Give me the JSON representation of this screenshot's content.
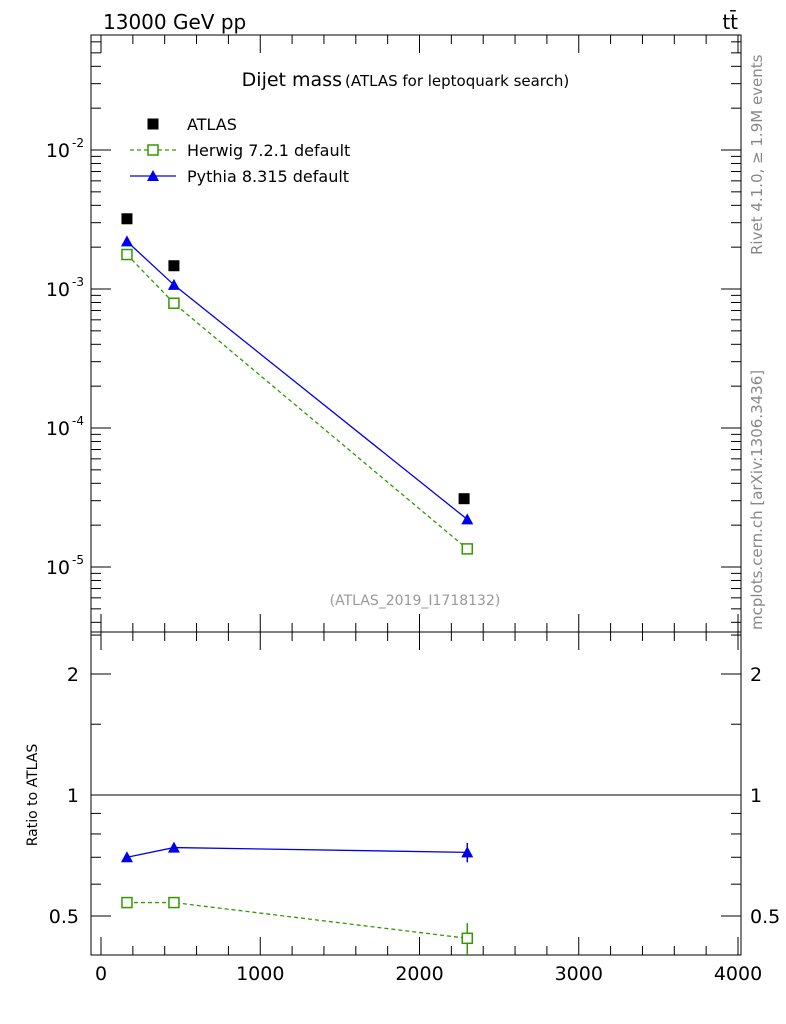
{
  "header": {
    "left": "13000 GeV pp",
    "right": "tt̄"
  },
  "side_text": {
    "top": "Rivet 4.1.0, ≥ 1.9M events",
    "bottom": "mcplots.cern.ch [arXiv:1306.3436]"
  },
  "chart_data": [
    {
      "type": "scatter",
      "title": "Dijet mass",
      "subtitle": "(ATLAS for leptoquark search)",
      "watermark": "(ATLAS_2019_I1718132)",
      "yscale": "log",
      "ylim": [
        0.068,
        3.4e-06
      ],
      "xlim": [
        -60,
        4020
      ],
      "ytick_labels": [
        {
          "exp": "-2",
          "value": 0.01
        },
        {
          "exp": "-3",
          "value": 0.001
        },
        {
          "exp": "-4",
          "value": 0.0001
        },
        {
          "exp": "-5",
          "value": 1e-05
        }
      ],
      "legend_position": "top-left",
      "series": [
        {
          "name": "ATLAS",
          "color": "#000000",
          "marker": "filled-square",
          "line": "none",
          "x": [
            163,
            458,
            2280
          ],
          "y": [
            0.0032,
            0.00147,
            3.1e-05
          ]
        },
        {
          "name": "Herwig 7.2.1 default",
          "color": "#339900",
          "marker": "open-square",
          "line": "dashed",
          "x": [
            163,
            458,
            2300
          ],
          "y": [
            0.00177,
            0.00079,
            1.35e-05
          ]
        },
        {
          "name": "Pythia 8.315 default",
          "color": "#0000ee",
          "marker": "filled-triangle",
          "line": "solid",
          "x": [
            163,
            458,
            2300
          ],
          "y": [
            0.0022,
            0.00107,
            2.2e-05
          ]
        }
      ]
    },
    {
      "type": "line",
      "ylabel": "Ratio to ATLAS",
      "yscale": "log",
      "ylim": [
        0.4,
        2.5
      ],
      "ytick_labels": [
        "2",
        "1",
        "0.5"
      ],
      "xtick_labels": [
        "0",
        "1000",
        "2000",
        "3000",
        "4000"
      ],
      "series": [
        {
          "name": "Pythia 8.315 default",
          "color": "#0000ee",
          "x": [
            163,
            458,
            2300
          ],
          "y": [
            0.7,
            0.74,
            0.72
          ],
          "err": [
            0.005,
            0.02,
            0.04
          ]
        },
        {
          "name": "Herwig 7.2.1 default",
          "color": "#339900",
          "x": [
            163,
            458,
            2300
          ],
          "y": [
            0.54,
            0.54,
            0.44
          ],
          "err": [
            0.005,
            0.005,
            0.04
          ]
        }
      ]
    }
  ]
}
